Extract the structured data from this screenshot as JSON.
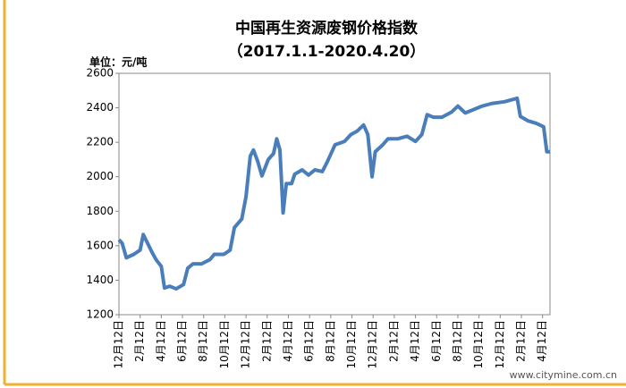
{
  "chart_data": {
    "type": "line",
    "title": "中国再生资源废钢价格指数",
    "subtitle": "（2017.1.1-2020.4.20）",
    "y_label": "单位：元/吨",
    "watermark": "www.citymine.com.cn",
    "xlim": [
      0,
      40.7
    ],
    "ylim": [
      1200,
      2600
    ],
    "yticks": [
      1200,
      1400,
      1600,
      1800,
      2000,
      2200,
      2400,
      2600
    ],
    "xticks": [
      {
        "value": 0,
        "label": "12月12日"
      },
      {
        "value": 2,
        "label": "2月12日"
      },
      {
        "value": 4,
        "label": "4月12日"
      },
      {
        "value": 6,
        "label": "6月12日"
      },
      {
        "value": 8,
        "label": "8月12日"
      },
      {
        "value": 10,
        "label": "10月12日"
      },
      {
        "value": 12,
        "label": "12月12日"
      },
      {
        "value": 14,
        "label": "2月12日"
      },
      {
        "value": 16,
        "label": "4月12日"
      },
      {
        "value": 18,
        "label": "6月12日"
      },
      {
        "value": 20,
        "label": "8月12日"
      },
      {
        "value": 22,
        "label": "10月12日"
      },
      {
        "value": 24,
        "label": "12月12日"
      },
      {
        "value": 26,
        "label": "2月12日"
      },
      {
        "value": 28,
        "label": "4月12日"
      },
      {
        "value": 30,
        "label": "6月12日"
      },
      {
        "value": 32,
        "label": "8月12日"
      },
      {
        "value": 34,
        "label": "10月12日"
      },
      {
        "value": 36,
        "label": "12月12日"
      },
      {
        "value": 38,
        "label": "2月12日"
      },
      {
        "value": 40,
        "label": "4月12日"
      }
    ],
    "x": [
      0,
      0.3,
      0.7,
      1.4,
      2,
      2.3,
      2.7,
      3.1,
      3.5,
      4,
      4.3,
      4.8,
      5.4,
      6.1,
      6.5,
      7,
      7.8,
      8.6,
      9,
      9.9,
      10.5,
      10.9,
      11.6,
      12,
      12.4,
      12.7,
      13.1,
      13.5,
      14.1,
      14.6,
      14.9,
      15.2,
      15.5,
      15.8,
      16.3,
      16.6,
      17.3,
      17.9,
      18.5,
      19.2,
      19.7,
      20.4,
      21.3,
      21.9,
      22.5,
      23.1,
      23.5,
      23.9,
      24.2,
      24.9,
      25.4,
      26.3,
      27.2,
      28,
      28.6,
      29.1,
      29.7,
      30.5,
      31.4,
      32,
      32.7,
      33.5,
      34.3,
      35.2,
      36.4,
      37.6,
      37.9,
      38.6,
      39.4,
      40.1,
      40.4,
      40.7
    ],
    "series": [
      {
        "color": "#4a7ebb",
        "values": [
          1635,
          1615,
          1530,
          1550,
          1575,
          1665,
          1615,
          1565,
          1520,
          1480,
          1355,
          1365,
          1350,
          1375,
          1470,
          1495,
          1495,
          1520,
          1550,
          1550,
          1575,
          1705,
          1755,
          1885,
          2120,
          2155,
          2090,
          2005,
          2100,
          2135,
          2220,
          2155,
          1790,
          1960,
          1960,
          2015,
          2040,
          2010,
          2040,
          2030,
          2090,
          2185,
          2205,
          2245,
          2265,
          2300,
          2245,
          2000,
          2145,
          2185,
          2220,
          2220,
          2235,
          2205,
          2245,
          2360,
          2345,
          2345,
          2375,
          2410,
          2370,
          2390,
          2410,
          2425,
          2435,
          2455,
          2350,
          2325,
          2310,
          2290,
          2145,
          2145
        ]
      }
    ]
  }
}
